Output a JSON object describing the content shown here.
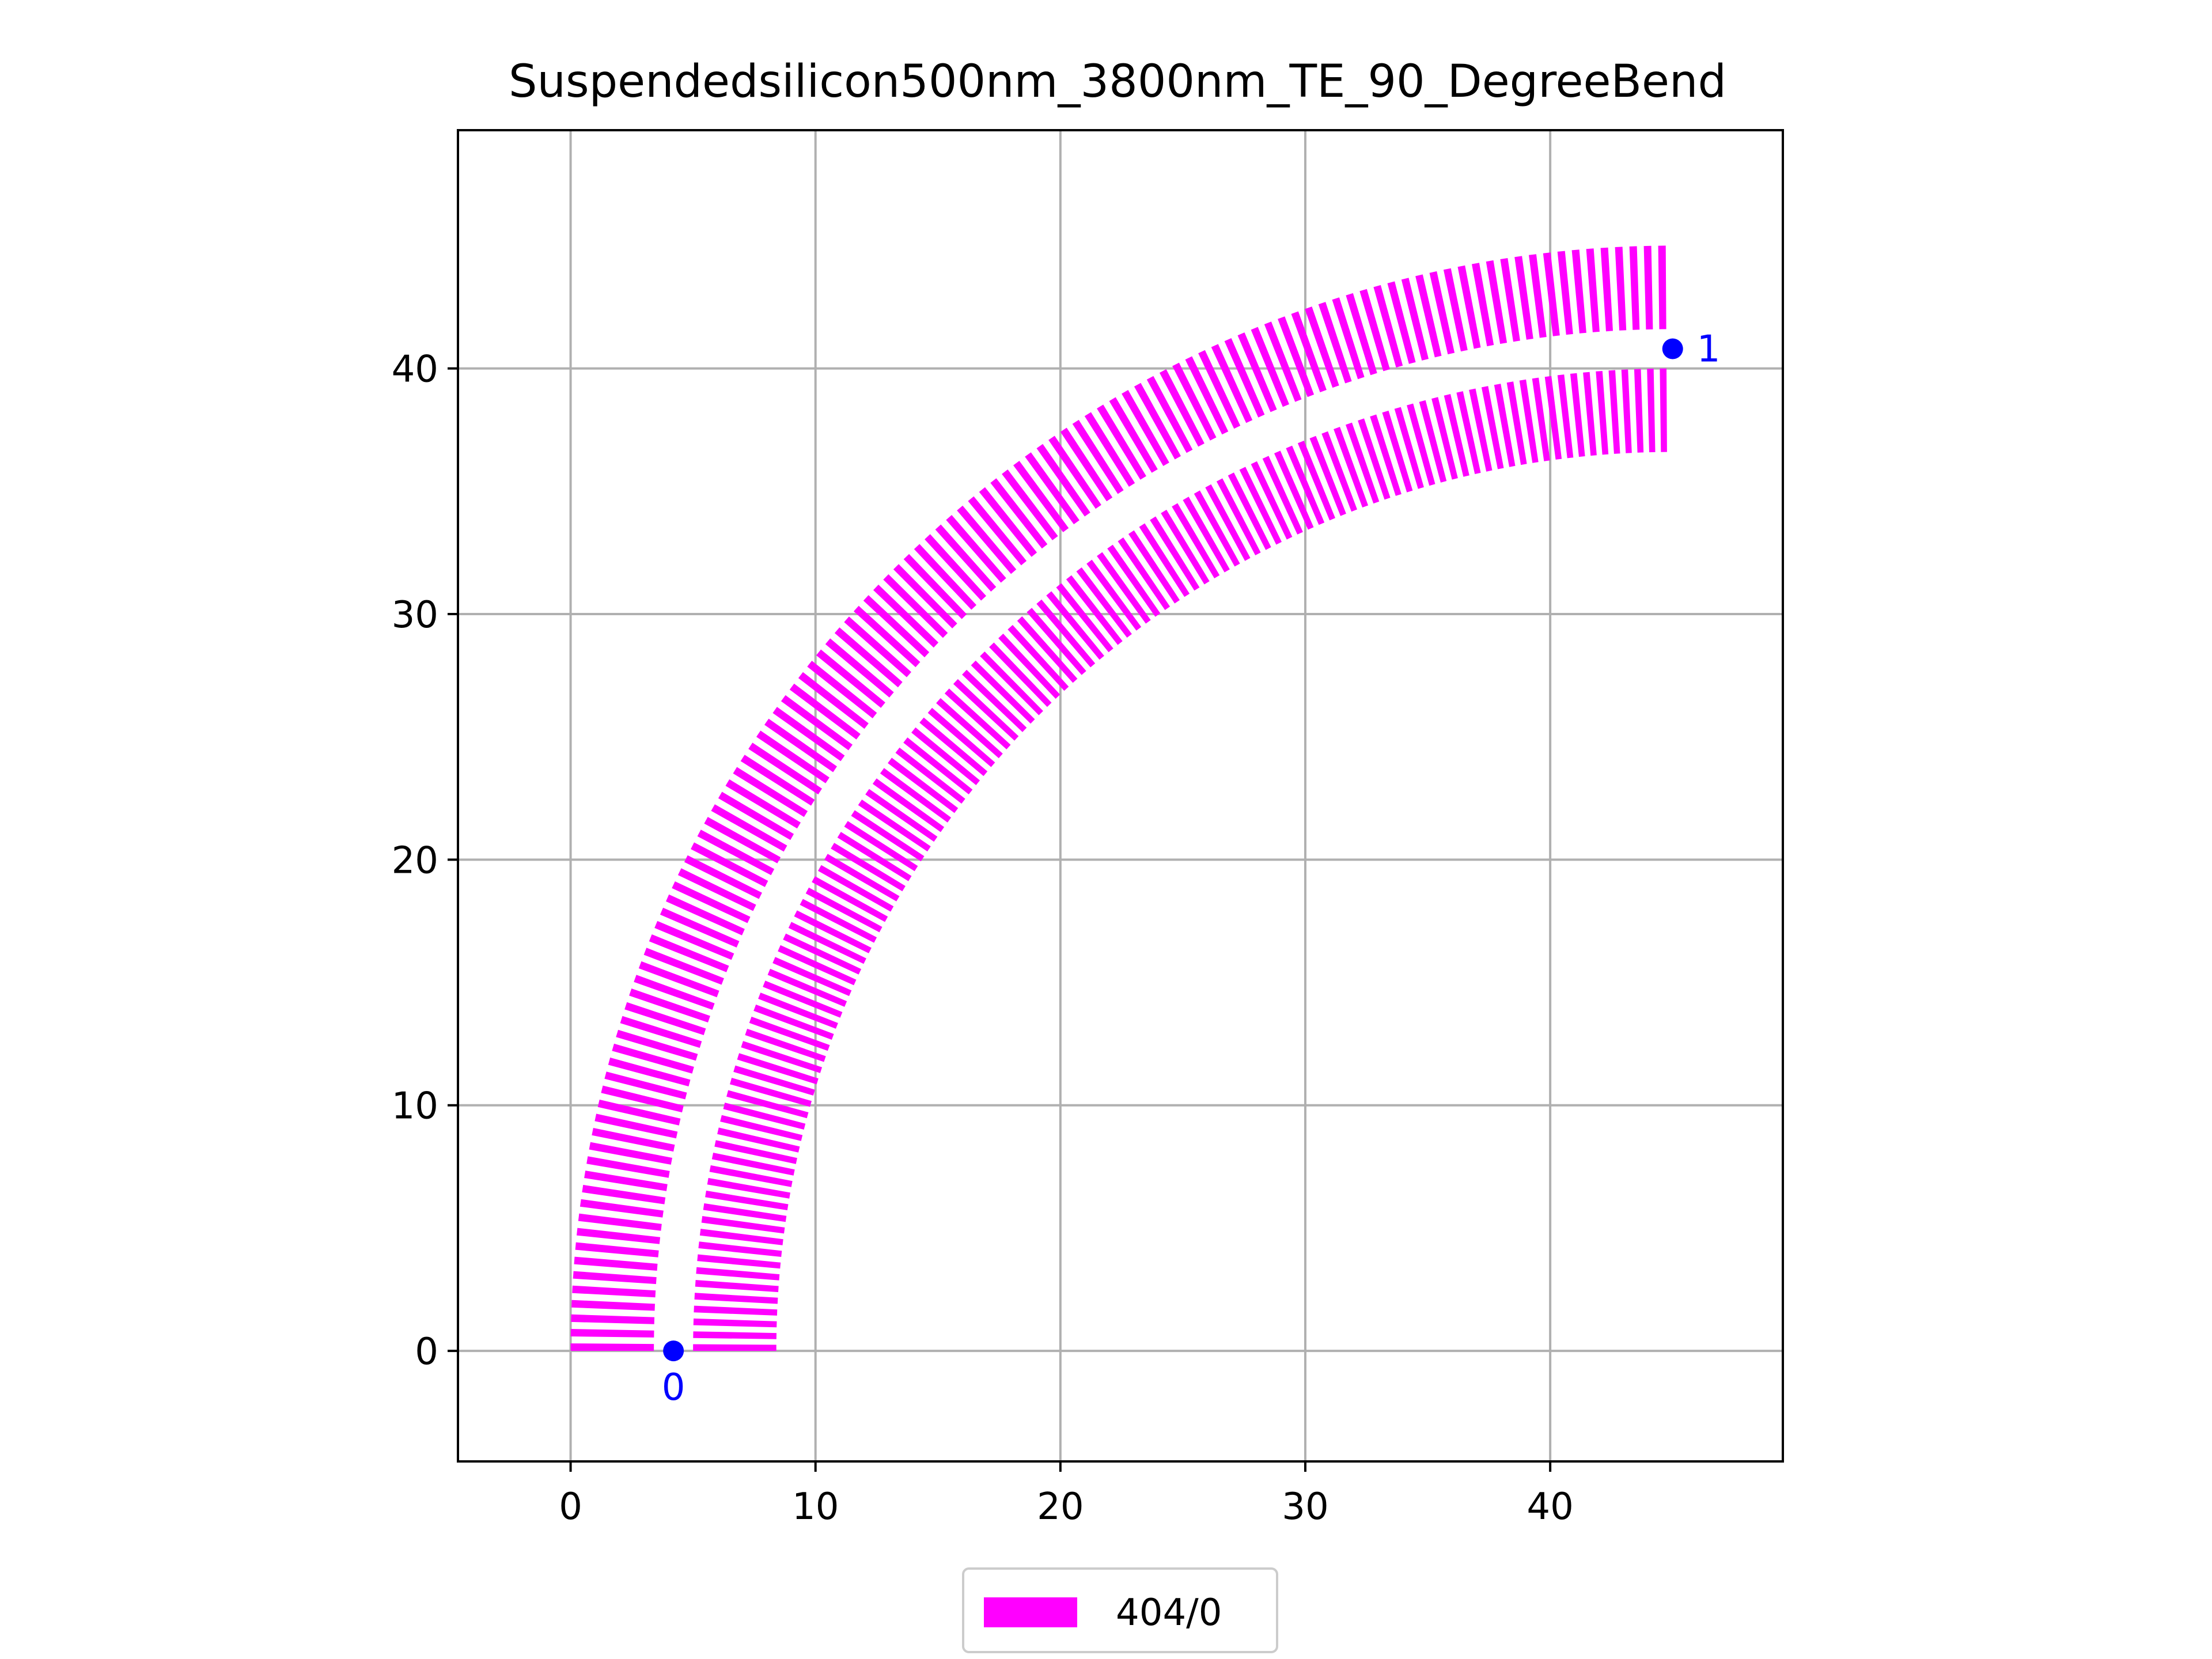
{
  "chart_data": {
    "type": "scatter",
    "title": "Suspendedsilicon500nm_3800nm_TE_90_DegreeBend",
    "xlabel": "",
    "ylabel": "",
    "xlim": [
      -4.6,
      49.5
    ],
    "ylim": [
      -4.5,
      49.7
    ],
    "xticks": [
      0,
      10,
      20,
      30,
      40
    ],
    "yticks": [
      0,
      10,
      20,
      30,
      40
    ],
    "grid": true,
    "legend": {
      "placement": "bottom-center",
      "entries": [
        {
          "label": "404/0",
          "color": "#ff00ff"
        }
      ]
    },
    "geometry": {
      "shape": "quarter-arc-grating-bend",
      "center": [
        45,
        0
      ],
      "bands": [
        {
          "r_outer": 45.0,
          "r_inner": 41.6
        },
        {
          "r_outer": 40.0,
          "r_inner": 36.6
        }
      ],
      "angle_start_deg": 90,
      "angle_end_deg": 180,
      "segment_count": 120,
      "color": "#ff00ff"
    },
    "ports": [
      {
        "label": "0",
        "x": 4.2,
        "y": 0.0,
        "label_position": "below",
        "color": "#0000ff"
      },
      {
        "label": "1",
        "x": 45.0,
        "y": 40.8,
        "label_position": "right",
        "color": "#0000ff"
      }
    ]
  }
}
